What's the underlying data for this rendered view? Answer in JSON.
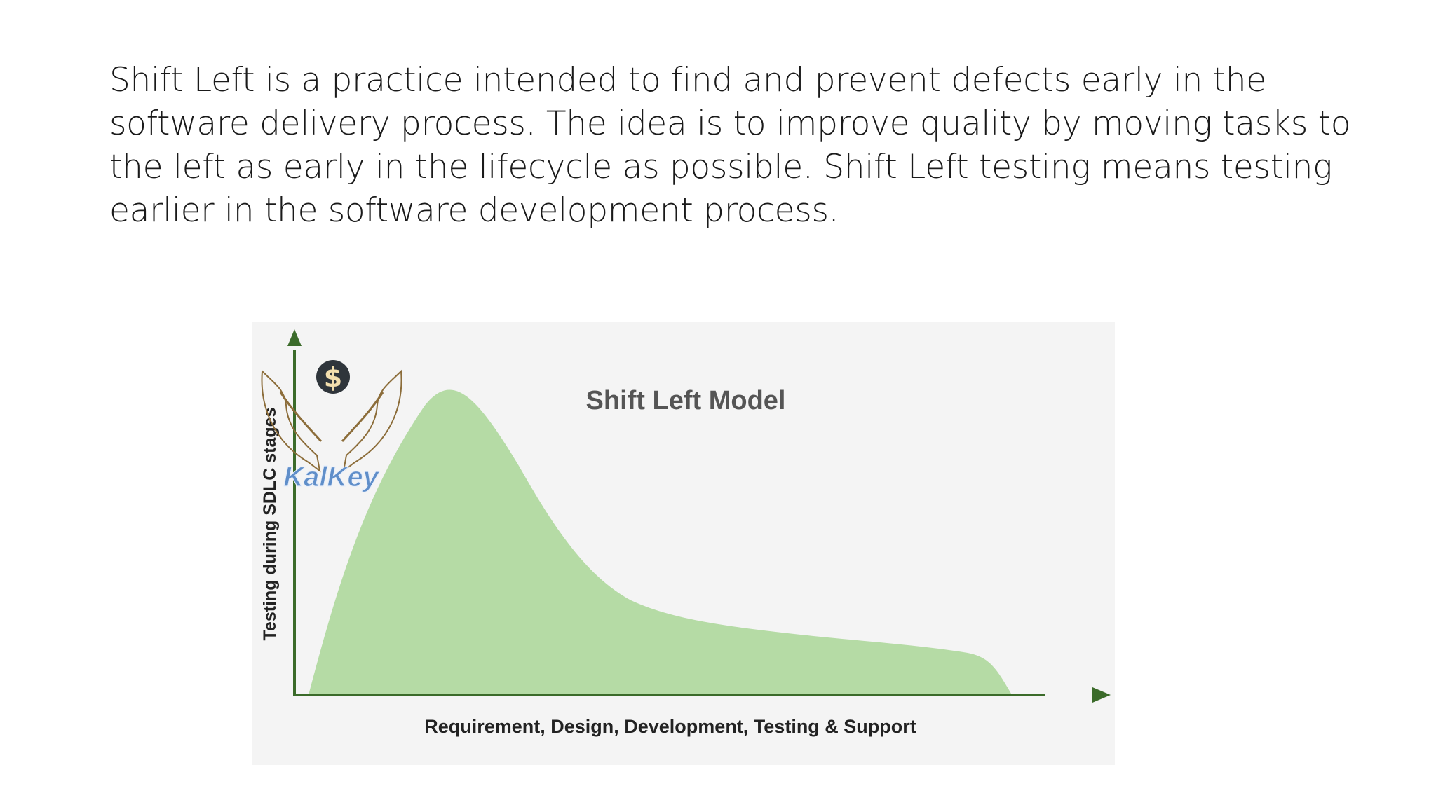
{
  "slide": {
    "paragraph_lines": [
      "Shift Left is a practice intended to find and prevent defects early in the",
      "software delivery process. The idea is to improve quality by moving tasks to",
      "the left as early in the lifecycle as possible. Shift Left testing means testing",
      "earlier in the software development process."
    ]
  },
  "diagram": {
    "title": "Shift Left Model",
    "y_axis_label": "Testing during SDLC stages",
    "x_axis_label": "Requirement, Design, Development, Testing & Support",
    "fill_color": "#b5dba5",
    "axis_color": "#3b6b2a"
  },
  "logo": {
    "text": "KalKey",
    "icon": "gear-dollar-hands-icon"
  }
}
